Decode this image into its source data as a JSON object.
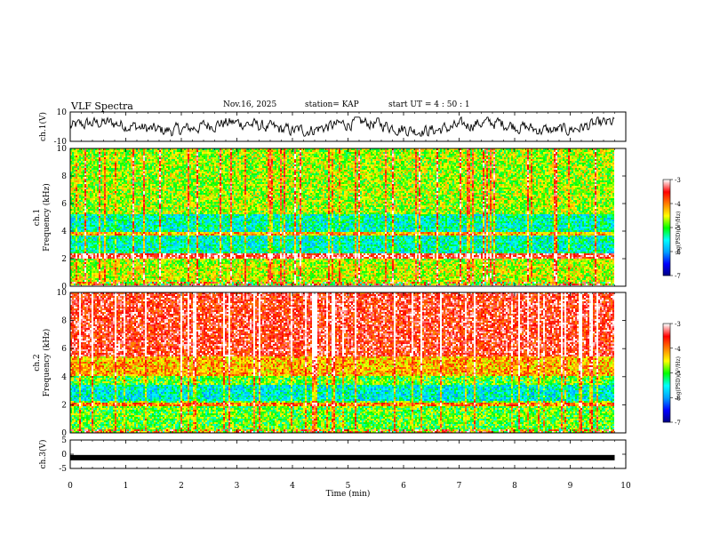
{
  "header": {
    "title": "VLF Spectra",
    "date": "Nov.16, 2025",
    "station": "station= KAP",
    "start_ut": "start  UT =   4 : 50 : 1"
  },
  "chart_data": [
    {
      "type": "line",
      "panel": "ch1-waveform",
      "ylabel": "ch.1(V)",
      "ylim": [
        -10,
        10
      ],
      "yticks": [
        10,
        -10
      ],
      "xlim": [
        0,
        10
      ],
      "x_extent_min": 9.8,
      "description_values": "noisy waveform, roughly -6 to 6 V"
    },
    {
      "type": "heatmap",
      "panel": "ch1-spectrogram",
      "ylabel": "ch.1\nFrequency (kHz)",
      "ylabel_line1": "ch.1",
      "ylabel_line2": "Frequency (kHz)",
      "ylim": [
        0,
        10
      ],
      "yticks": [
        0,
        2,
        4,
        6,
        8,
        10
      ],
      "xlim": [
        0,
        10
      ],
      "x_extent_min": 9.8,
      "colorbar": {
        "label": "log(PSD)(V²/Hz)",
        "range": [
          -7,
          -3
        ],
        "ticks": [
          -3,
          -4,
          -5,
          -6,
          -7
        ]
      }
    },
    {
      "type": "heatmap",
      "panel": "ch2-spectrogram",
      "ylabel_line1": "ch.2",
      "ylabel_line2": "Frequency (kHz)",
      "ylim": [
        0,
        10
      ],
      "yticks": [
        0,
        2,
        4,
        6,
        8,
        10
      ],
      "xlim": [
        0,
        10
      ],
      "x_extent_min": 9.8,
      "colorbar": {
        "label": "log(PSD)(V²/Hz)",
        "range": [
          -7,
          -3
        ],
        "ticks": [
          -3,
          -4,
          -5,
          -6,
          -7
        ]
      }
    },
    {
      "type": "line",
      "panel": "ch3-waveform",
      "ylabel": "ch.3(V)",
      "ylim": [
        -5,
        5
      ],
      "yticks": [
        5,
        0,
        -5
      ],
      "xlim": [
        0,
        10
      ],
      "x_extent_min": 9.8,
      "constant_value": -1.2,
      "xlabel": "Time (min)",
      "xticks": [
        0,
        1,
        2,
        3,
        4,
        5,
        6,
        7,
        8,
        9,
        10
      ]
    }
  ],
  "colors": {
    "trace": "#000000",
    "colormap": [
      "#000080",
      "#0000ff",
      "#00a0ff",
      "#00ffff",
      "#00ff00",
      "#ffff00",
      "#ff8000",
      "#ff0000",
      "#ffffff"
    ]
  }
}
